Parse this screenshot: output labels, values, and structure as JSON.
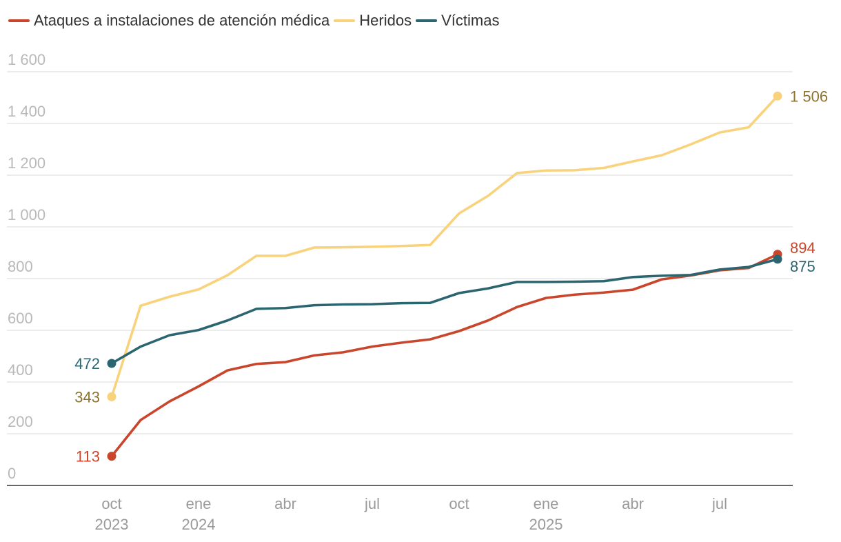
{
  "chart_data": {
    "type": "line",
    "title": "",
    "xlabel": "",
    "ylabel": "",
    "ylim": [
      0,
      1600
    ],
    "yticks": [
      {
        "value": 0,
        "label": "0"
      },
      {
        "value": 200,
        "label": "200"
      },
      {
        "value": 400,
        "label": "400"
      },
      {
        "value": 600,
        "label": "600"
      },
      {
        "value": 800,
        "label": "800"
      },
      {
        "value": 1000,
        "label": "1 000"
      },
      {
        "value": 1200,
        "label": "1 200"
      },
      {
        "value": 1400,
        "label": "1 400"
      },
      {
        "value": 1600,
        "label": "1 600"
      }
    ],
    "xticks": [
      {
        "x": "2023-10",
        "label": "oct",
        "sublabel": "2023"
      },
      {
        "x": "2024-01",
        "label": "ene",
        "sublabel": "2024"
      },
      {
        "x": "2024-04",
        "label": "abr",
        "sublabel": ""
      },
      {
        "x": "2024-07",
        "label": "jul",
        "sublabel": ""
      },
      {
        "x": "2024-10",
        "label": "oct",
        "sublabel": ""
      },
      {
        "x": "2025-01",
        "label": "ene",
        "sublabel": "2025"
      },
      {
        "x": "2025-04",
        "label": "abr",
        "sublabel": ""
      },
      {
        "x": "2025-07",
        "label": "jul",
        "sublabel": ""
      }
    ],
    "x": [
      "2023-10",
      "2023-11",
      "2023-12",
      "2024-01",
      "2024-02",
      "2024-03",
      "2024-04",
      "2024-05",
      "2024-06",
      "2024-07",
      "2024-08",
      "2024-09",
      "2024-10",
      "2024-11",
      "2024-12",
      "2025-01",
      "2025-02",
      "2025-03",
      "2025-04",
      "2025-05",
      "2025-06",
      "2025-07",
      "2025-08",
      "2025-09"
    ],
    "series": [
      {
        "name": "Ataques a instalaciones de atención médica",
        "color": "#c9462c",
        "label_color": "#c9462c",
        "start_label": "113",
        "end_label": "894",
        "values": [
          113,
          253,
          325,
          383,
          445,
          470,
          477,
          503,
          515,
          537,
          552,
          565,
          597,
          638,
          690,
          725,
          738,
          746,
          757,
          797,
          812,
          832,
          841,
          894
        ]
      },
      {
        "name": "Heridos",
        "color": "#f9d27c",
        "label_color": "#8c7330",
        "start_label": "343",
        "end_label": "1 506",
        "values": [
          343,
          695,
          730,
          758,
          813,
          888,
          888,
          920,
          921,
          923,
          926,
          930,
          1052,
          1120,
          1208,
          1218,
          1219,
          1228,
          1253,
          1277,
          1319,
          1365,
          1385,
          1506
        ]
      },
      {
        "name": "Víctimas",
        "color": "#2b6570",
        "label_color": "#2b6570",
        "start_label": "472",
        "end_label": "875",
        "values": [
          472,
          537,
          581,
          601,
          638,
          683,
          686,
          697,
          700,
          701,
          705,
          706,
          744,
          762,
          787,
          787,
          788,
          790,
          806,
          811,
          814,
          835,
          845,
          875
        ]
      }
    ],
    "legend": "top-left",
    "grid": true
  }
}
